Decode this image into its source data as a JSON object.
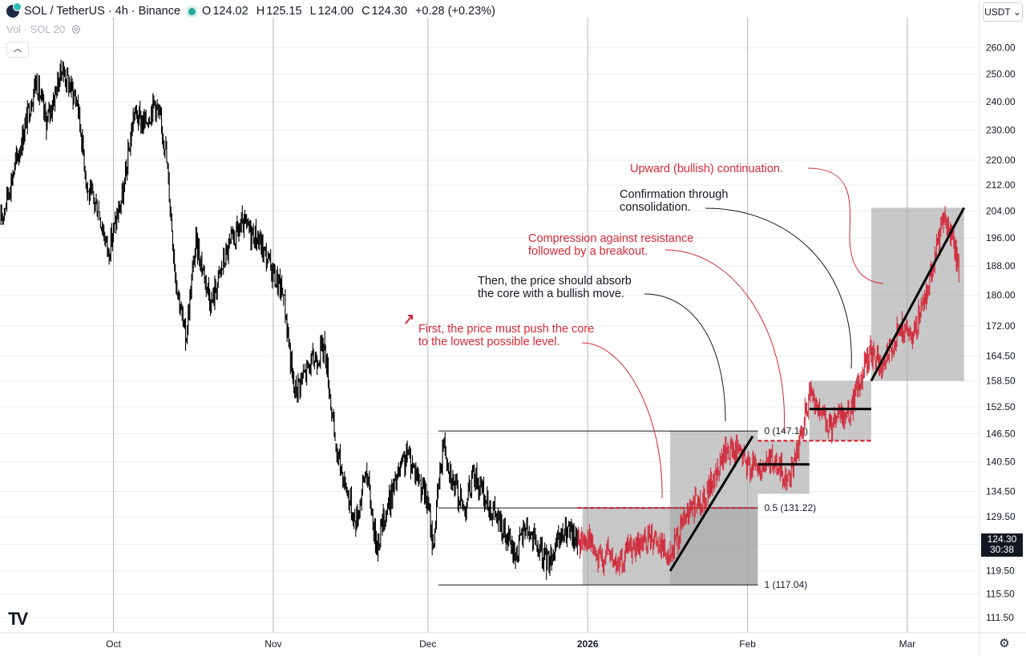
{
  "header": {
    "symbol": "SOL / TetherUS · 4h · Binance",
    "open_label": "O",
    "open": "124.02",
    "high_label": "H",
    "high": "125.15",
    "low_label": "L",
    "low": "124.00",
    "close_label": "C",
    "close": "124.30",
    "change": "+0.28 (+0.23%)"
  },
  "volume_indicator": "Vol · SOL 20",
  "currency_selector": "USDT",
  "last_price": {
    "price": "124.30",
    "countdown": "30:38"
  },
  "colors": {
    "candle": "#000000",
    "highlight_candle": "#d12c3c",
    "annotation": "#d62a36",
    "box": "#a7a7a7",
    "grid": "#ededed"
  },
  "chart_data": {
    "type": "candlestick",
    "title": "SOL / TetherUS · 4h · Binance",
    "y_axis": {
      "scale": "log",
      "range": [
        109.0,
        270.0
      ],
      "ticks": [
        "111.50",
        "115.50",
        "119.50",
        "124.30",
        "129.50",
        "134.50",
        "140.50",
        "146.50",
        "152.50",
        "158.50",
        "164.50",
        "172.00",
        "180.00",
        "188.00",
        "196.00",
        "204.00",
        "212.00",
        "220.00",
        "230.00",
        "240.00",
        "250.00",
        "260.00"
      ]
    },
    "x_axis": {
      "ticks": [
        "Oct",
        "Nov",
        "Dec",
        "2026",
        "Feb",
        "Mar"
      ],
      "day_range": [
        0,
        190
      ],
      "tick_days": [
        22,
        53,
        83,
        114,
        145,
        176
      ]
    },
    "price_path_black": [
      {
        "d": 0,
        "p": 200
      },
      {
        "d": 4,
        "p": 225
      },
      {
        "d": 7,
        "p": 248
      },
      {
        "d": 9,
        "p": 232
      },
      {
        "d": 12,
        "p": 252
      },
      {
        "d": 15,
        "p": 240
      },
      {
        "d": 17,
        "p": 210
      },
      {
        "d": 19,
        "p": 205
      },
      {
        "d": 21,
        "p": 192
      },
      {
        "d": 24,
        "p": 210
      },
      {
        "d": 26,
        "p": 236
      },
      {
        "d": 28,
        "p": 232
      },
      {
        "d": 30,
        "p": 240
      },
      {
        "d": 32,
        "p": 226
      },
      {
        "d": 34,
        "p": 186
      },
      {
        "d": 36,
        "p": 168
      },
      {
        "d": 38,
        "p": 195
      },
      {
        "d": 41,
        "p": 178
      },
      {
        "d": 44,
        "p": 192
      },
      {
        "d": 47,
        "p": 200
      },
      {
        "d": 50,
        "p": 196
      },
      {
        "d": 53,
        "p": 186
      },
      {
        "d": 55,
        "p": 180
      },
      {
        "d": 57,
        "p": 156
      },
      {
        "d": 60,
        "p": 162
      },
      {
        "d": 63,
        "p": 167
      },
      {
        "d": 65,
        "p": 144
      },
      {
        "d": 67,
        "p": 136
      },
      {
        "d": 69,
        "p": 128
      },
      {
        "d": 71,
        "p": 139
      },
      {
        "d": 73,
        "p": 124
      },
      {
        "d": 75,
        "p": 131
      },
      {
        "d": 77,
        "p": 137
      },
      {
        "d": 79,
        "p": 142
      },
      {
        "d": 81,
        "p": 138
      },
      {
        "d": 83,
        "p": 132
      },
      {
        "d": 84,
        "p": 124
      },
      {
        "d": 86,
        "p": 145
      },
      {
        "d": 88,
        "p": 136
      },
      {
        "d": 90,
        "p": 131
      },
      {
        "d": 92,
        "p": 138
      },
      {
        "d": 94,
        "p": 133
      },
      {
        "d": 96,
        "p": 130
      },
      {
        "d": 98,
        "p": 126
      },
      {
        "d": 100,
        "p": 122
      },
      {
        "d": 102,
        "p": 128
      },
      {
        "d": 104,
        "p": 124
      },
      {
        "d": 106,
        "p": 121
      },
      {
        "d": 108,
        "p": 124
      },
      {
        "d": 110,
        "p": 127
      },
      {
        "d": 112,
        "p": 124.5
      }
    ],
    "price_path_red": [
      {
        "d": 112,
        "p": 124.5
      },
      {
        "d": 114,
        "p": 126
      },
      {
        "d": 116,
        "p": 121
      },
      {
        "d": 118,
        "p": 123
      },
      {
        "d": 120,
        "p": 120
      },
      {
        "d": 122,
        "p": 124
      },
      {
        "d": 124,
        "p": 123
      },
      {
        "d": 126,
        "p": 126
      },
      {
        "d": 128,
        "p": 125
      },
      {
        "d": 130,
        "p": 122
      },
      {
        "d": 131,
        "p": 125
      },
      {
        "d": 133,
        "p": 129
      },
      {
        "d": 135,
        "p": 132
      },
      {
        "d": 137,
        "p": 134
      },
      {
        "d": 139,
        "p": 138
      },
      {
        "d": 141,
        "p": 143
      },
      {
        "d": 143,
        "p": 143
      },
      {
        "d": 145,
        "p": 140
      },
      {
        "d": 147,
        "p": 139
      },
      {
        "d": 149,
        "p": 141
      },
      {
        "d": 151,
        "p": 139
      },
      {
        "d": 153,
        "p": 137
      },
      {
        "d": 155,
        "p": 144
      },
      {
        "d": 157,
        "p": 155
      },
      {
        "d": 159,
        "p": 151
      },
      {
        "d": 161,
        "p": 148
      },
      {
        "d": 163,
        "p": 150
      },
      {
        "d": 165,
        "p": 152
      },
      {
        "d": 167,
        "p": 160
      },
      {
        "d": 169,
        "p": 166
      },
      {
        "d": 171,
        "p": 161
      },
      {
        "d": 173,
        "p": 167
      },
      {
        "d": 175,
        "p": 172
      },
      {
        "d": 177,
        "p": 168
      },
      {
        "d": 179,
        "p": 178
      },
      {
        "d": 181,
        "p": 188
      },
      {
        "d": 183,
        "p": 202
      },
      {
        "d": 185,
        "p": 195
      },
      {
        "d": 186,
        "p": 186
      }
    ],
    "fib_levels": [
      {
        "label": "0 (147.12)",
        "price": 147.12
      },
      {
        "label": "0.5 (131.22)",
        "price": 131.22
      },
      {
        "label": "1 (117.04)",
        "price": 117.04
      }
    ],
    "zones": [
      {
        "from_day": 113,
        "to_day": 147,
        "low": 117.04,
        "high": 131.22
      },
      {
        "from_day": 130,
        "to_day": 147,
        "low": 117.04,
        "high": 147.12
      },
      {
        "from_day": 147,
        "to_day": 157,
        "low": 134,
        "high": 145
      },
      {
        "from_day": 157,
        "to_day": 169,
        "low": 145,
        "high": 158.5
      },
      {
        "from_day": 169,
        "to_day": 187,
        "low": 158.5,
        "high": 205
      }
    ],
    "trend_lines": [
      {
        "from": {
          "d": 130,
          "p": 119.5
        },
        "to": {
          "d": 146,
          "p": 146
        }
      },
      {
        "from": {
          "d": 169,
          "p": 158.5
        },
        "to": {
          "d": 187,
          "p": 205
        }
      }
    ],
    "consolidation_lines": [
      {
        "from_day": 147,
        "to_day": 157,
        "price": 140
      },
      {
        "from_day": 157,
        "to_day": 169,
        "price": 152
      }
    ],
    "dashed_levels": [
      {
        "from_day": 112,
        "to_day": 147,
        "price": 131.22
      },
      {
        "from_day": 147,
        "to_day": 169,
        "price": 145
      }
    ],
    "annotations": [
      {
        "text": "First, the price must push the core\nto the lowest possible level.",
        "color": "red"
      },
      {
        "text": "Then, the price should absorb\nthe core with a bullish move.",
        "color": "black"
      },
      {
        "text": "Compression against resistance\nfollowed by a breakout.",
        "color": "red"
      },
      {
        "text": "Confirmation through\nconsolidation.",
        "color": "black"
      },
      {
        "text": "Upward (bullish) continuation.",
        "color": "red"
      }
    ]
  }
}
